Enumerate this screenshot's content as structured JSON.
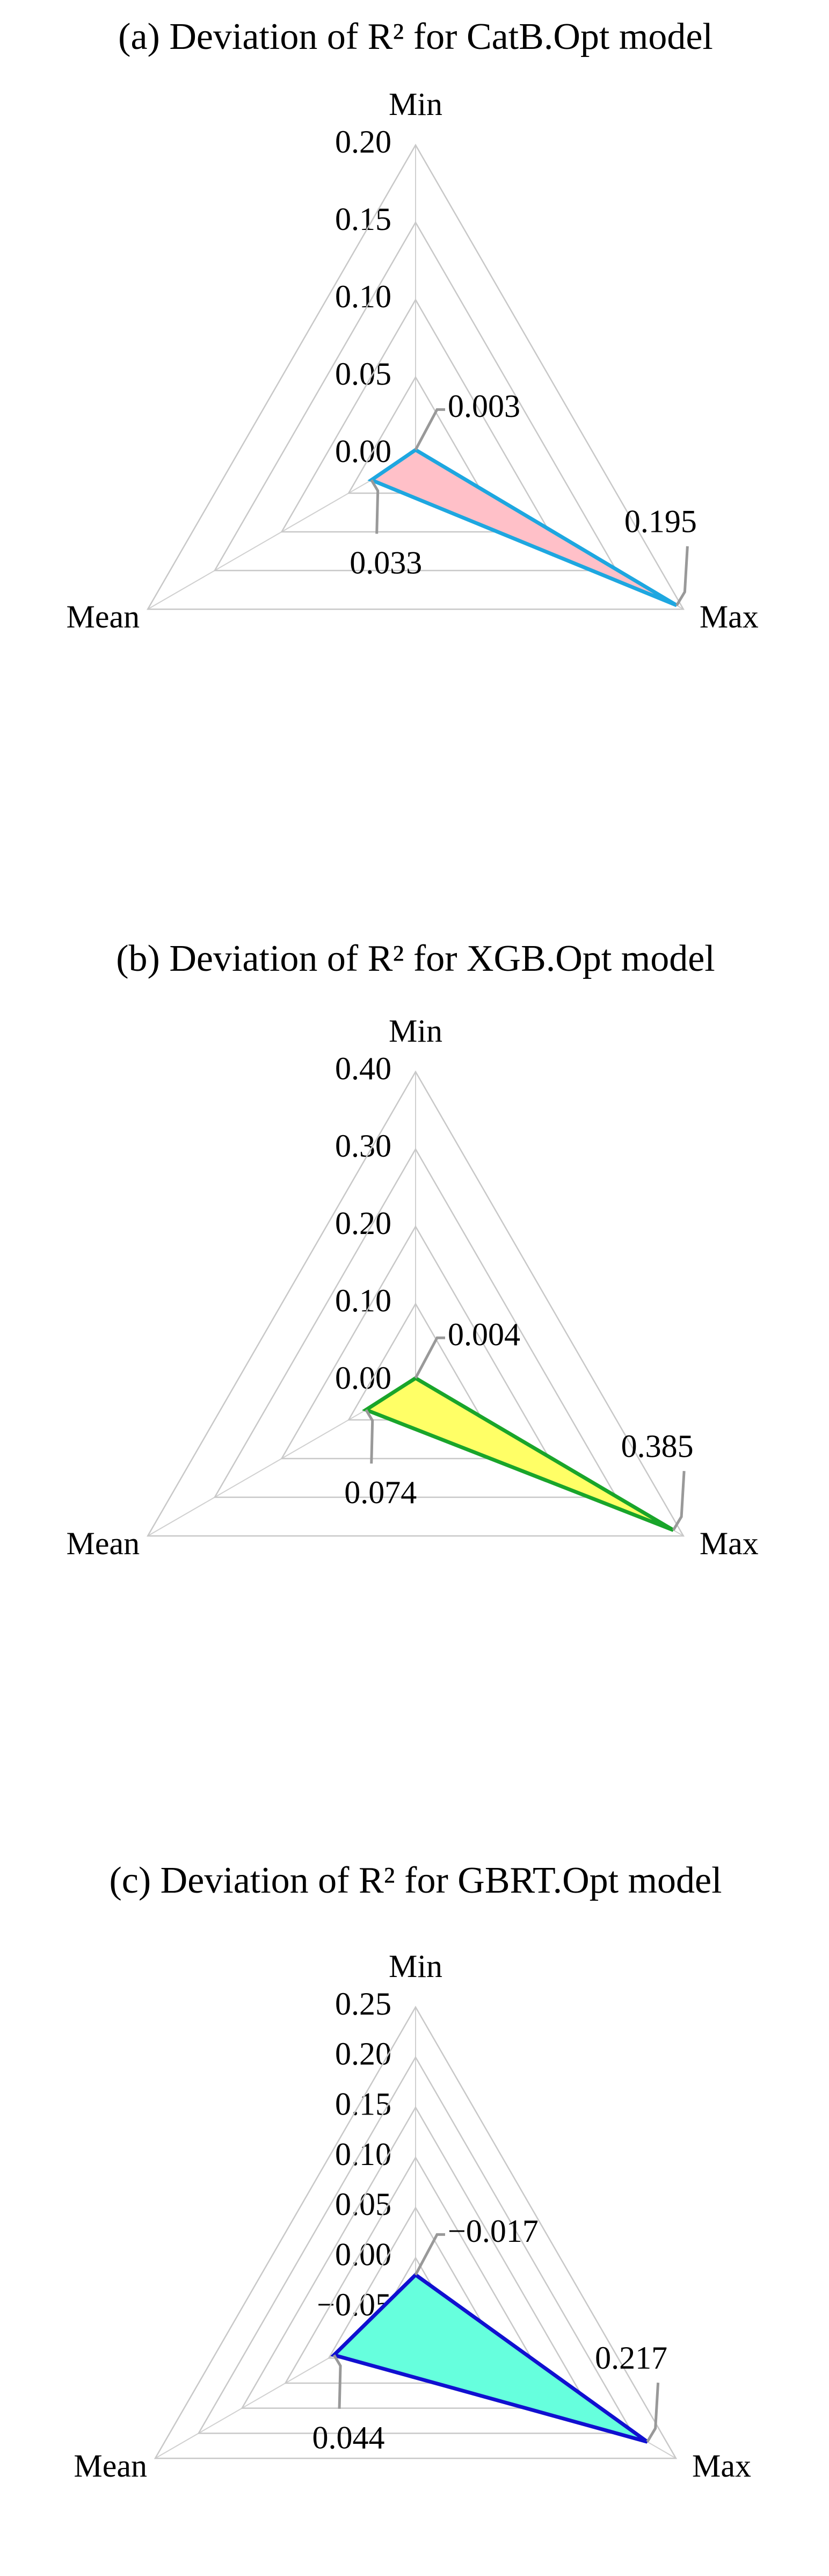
{
  "chart_data": [
    {
      "type": "radar",
      "title": "(a) Deviation of R² for CatB.Opt model",
      "categories": [
        "Min",
        "Max",
        "Mean"
      ],
      "values": [
        0.003,
        0.195,
        0.033
      ],
      "color": "#1ea7e0",
      "fill_color": "#ffc0c8",
      "ylim": [
        0,
        0.2
      ],
      "yticks": [
        {
          "value": 0,
          "label": "0.00"
        },
        {
          "value": 0.05,
          "label": "0.05"
        },
        {
          "value": 0.1,
          "label": "0.10"
        },
        {
          "value": 0.15,
          "label": "0.15"
        },
        {
          "value": 0.2,
          "label": "0.20"
        }
      ]
    },
    {
      "type": "radar",
      "title": "(b) Deviation of R² for XGB.Opt model",
      "categories": [
        "Min",
        "Max",
        "Mean"
      ],
      "values": [
        0.004,
        0.385,
        0.074
      ],
      "color": "#19a52a",
      "fill_color": "#ffff66",
      "ylim": [
        0,
        0.4
      ],
      "yticks": [
        {
          "value": 0,
          "label": "0.00"
        },
        {
          "value": 0.1,
          "label": "0.10"
        },
        {
          "value": 0.2,
          "label": "0.20"
        },
        {
          "value": 0.3,
          "label": "0.30"
        },
        {
          "value": 0.4,
          "label": "0.40"
        }
      ]
    },
    {
      "type": "radar",
      "title": "(c) Deviation of R²  for GBRT.Opt model",
      "categories": [
        "Min",
        "Max",
        "Mean"
      ],
      "values": [
        -0.017,
        0.217,
        0.044
      ],
      "value_labels": [
        "−0.017",
        "0.217",
        "0.044"
      ],
      "color": "#1010d0",
      "fill_color": "#66ffdd",
      "ylim": [
        -0.05,
        0.25
      ],
      "yticks": [
        {
          "value": -0.05,
          "label": "−0.05"
        },
        {
          "value": 0,
          "label": "0.00"
        },
        {
          "value": 0.05,
          "label": "0.05"
        },
        {
          "value": 0.1,
          "label": "0.10"
        },
        {
          "value": 0.15,
          "label": "0.15"
        },
        {
          "value": 0.2,
          "label": "0.20"
        },
        {
          "value": 0.25,
          "label": "0.25"
        }
      ]
    }
  ]
}
